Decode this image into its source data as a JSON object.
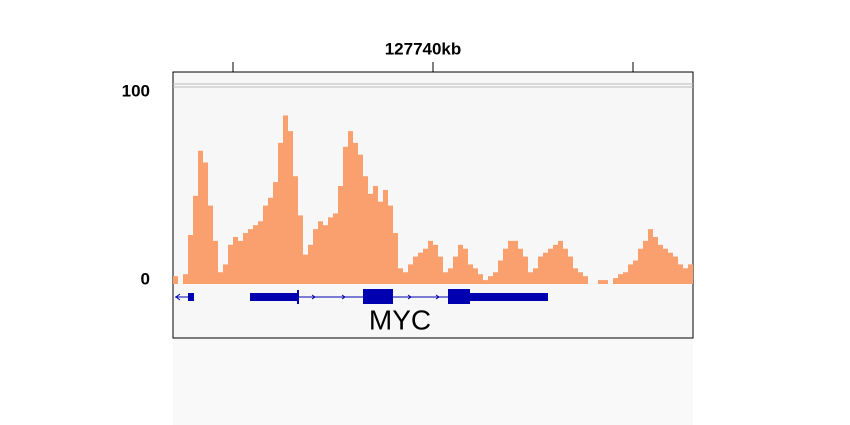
{
  "chart_data": {
    "type": "histogram",
    "xlim": [
      127733.5,
      127746.5
    ],
    "xticks": [
      {
        "value": 127735,
        "label": null
      },
      {
        "value": 127740,
        "label": "127740kb"
      },
      {
        "value": 127745,
        "label": null
      }
    ],
    "ylim": [
      0,
      100
    ],
    "yticks": [
      0,
      100
    ],
    "color": "#f9a06e",
    "bins": [
      127733.5,
      127733.625,
      127733.75,
      127733.875,
      127734,
      127734.125,
      127734.25,
      127734.375,
      127734.5,
      127734.625,
      127734.75,
      127734.875,
      127735,
      127735.125,
      127735.25,
      127735.375,
      127735.5,
      127735.625,
      127735.75,
      127735.875,
      127736,
      127736.125,
      127736.25,
      127736.375,
      127736.5,
      127736.625,
      127736.75,
      127736.875,
      127737,
      127737.125,
      127737.25,
      127737.375,
      127737.5,
      127737.625,
      127737.75,
      127737.875,
      127738,
      127738.125,
      127738.25,
      127738.375,
      127738.5,
      127738.625,
      127738.75,
      127738.875,
      127739,
      127739.125,
      127739.25,
      127739.375,
      127739.5,
      127739.625,
      127739.75,
      127739.875,
      127740,
      127740.125,
      127740.25,
      127740.375,
      127740.5,
      127740.625,
      127740.75,
      127740.875,
      127741,
      127741.125,
      127741.25,
      127741.375,
      127741.5,
      127741.625,
      127741.75,
      127741.875,
      127742,
      127742.125,
      127742.25,
      127742.375,
      127742.5,
      127742.625,
      127742.75,
      127742.875,
      127743,
      127743.125,
      127743.25,
      127743.375,
      127743.5,
      127743.625,
      127743.75,
      127743.875,
      127744,
      127744.125,
      127744.25,
      127744.375,
      127744.5,
      127744.625,
      127744.75,
      127744.875,
      127745,
      127745.125,
      127745.25,
      127745.375,
      127745.5,
      127745.625,
      127745.75,
      127745.875,
      127746,
      127746.125,
      127746.25,
      127746.375,
      127746.5
    ],
    "values": [
      4,
      0,
      5,
      25,
      45,
      68,
      62,
      40,
      22,
      6,
      10,
      20,
      24,
      22,
      26,
      28,
      30,
      32,
      40,
      44,
      52,
      72,
      86,
      78,
      55,
      35,
      15,
      20,
      28,
      32,
      30,
      34,
      36,
      50,
      70,
      78,
      72,
      66,
      55,
      46,
      50,
      42,
      48,
      40,
      26,
      8,
      6,
      10,
      14,
      16,
      18,
      22,
      20,
      14,
      6,
      8,
      14,
      20,
      18,
      10,
      8,
      5,
      2,
      4,
      6,
      12,
      18,
      22,
      22,
      18,
      14,
      6,
      8,
      14,
      16,
      18,
      20,
      22,
      18,
      14,
      8,
      6,
      4,
      0,
      0,
      2,
      2,
      0,
      3,
      5,
      6,
      10,
      12,
      18,
      22,
      28,
      24,
      20,
      18,
      16,
      14,
      10,
      8,
      10
    ],
    "gene": {
      "name": "MYC"
    }
  }
}
